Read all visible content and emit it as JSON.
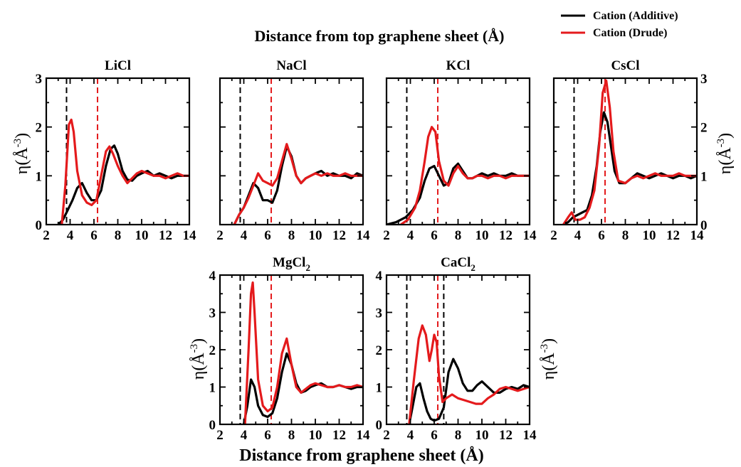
{
  "figure": {
    "top_xlabel": "Distance from top graphene sheet (Å)",
    "bottom_xlabel": "Distance from graphene sheet (Å)",
    "ylabel_main": "η(Å",
    "ylabel_sup": "-3",
    "ylabel_close": ")",
    "legend": [
      {
        "label": "Cation (Additive)",
        "color": "#000000"
      },
      {
        "label": "Cation (Drude)",
        "color": "#e41a1c"
      }
    ]
  },
  "chart_data": [
    {
      "type": "line",
      "title": "LiCl",
      "xlim": [
        2,
        14
      ],
      "ylim": [
        0,
        3
      ],
      "xticks": [
        2,
        4,
        6,
        8,
        10,
        12,
        14
      ],
      "yticks": [
        0,
        1,
        2,
        3
      ],
      "vlines": [
        {
          "x": 3.7,
          "color": "#000000"
        },
        {
          "x": 6.3,
          "color": "#e41a1c"
        }
      ],
      "series": [
        {
          "name": "Cation (Additive)",
          "color": "#000000",
          "x": [
            3.0,
            3.4,
            3.8,
            4.2,
            4.6,
            5.0,
            5.4,
            5.8,
            6.2,
            6.6,
            7.0,
            7.4,
            7.7,
            8.0,
            8.4,
            8.8,
            9.2,
            9.6,
            10.0,
            10.5,
            11.0,
            11.5,
            12.0,
            12.5,
            13.0,
            13.5,
            14.0
          ],
          "y": [
            0.0,
            0.1,
            0.3,
            0.5,
            0.75,
            0.85,
            0.65,
            0.5,
            0.5,
            0.7,
            1.2,
            1.55,
            1.62,
            1.45,
            1.1,
            0.92,
            0.9,
            1.0,
            1.05,
            1.1,
            1.0,
            1.05,
            1.0,
            0.95,
            1.0,
            1.0,
            1.0
          ]
        },
        {
          "name": "Cation (Drude)",
          "color": "#e41a1c",
          "x": [
            3.3,
            3.6,
            3.9,
            4.1,
            4.3,
            4.6,
            5.0,
            5.4,
            5.8,
            6.2,
            6.6,
            7.0,
            7.3,
            7.6,
            8.0,
            8.4,
            8.8,
            9.2,
            9.6,
            10.0,
            10.5,
            11.0,
            11.5,
            12.0,
            12.5,
            13.0,
            13.5,
            14.0
          ],
          "y": [
            0.0,
            0.8,
            2.05,
            2.15,
            1.9,
            1.1,
            0.6,
            0.45,
            0.4,
            0.5,
            1.0,
            1.5,
            1.6,
            1.45,
            1.2,
            1.0,
            0.85,
            0.95,
            1.05,
            1.1,
            1.05,
            1.0,
            1.0,
            0.95,
            1.0,
            1.05,
            1.0,
            1.0
          ]
        }
      ]
    },
    {
      "type": "line",
      "title": "NaCl",
      "xlim": [
        2,
        14
      ],
      "ylim": [
        0,
        3
      ],
      "xticks": [
        2,
        4,
        6,
        8,
        10,
        12,
        14
      ],
      "yticks": [
        0,
        1,
        2,
        3
      ],
      "vlines": [
        {
          "x": 3.7,
          "color": "#000000"
        },
        {
          "x": 6.3,
          "color": "#e41a1c"
        }
      ],
      "series": [
        {
          "name": "Cation (Additive)",
          "color": "#000000",
          "x": [
            3.2,
            3.6,
            4.0,
            4.4,
            4.8,
            5.2,
            5.6,
            6.0,
            6.4,
            6.8,
            7.2,
            7.6,
            8.0,
            8.4,
            8.8,
            9.2,
            9.6,
            10.0,
            10.5,
            11.0,
            11.5,
            12.0,
            12.5,
            13.0,
            13.5,
            14.0
          ],
          "y": [
            0.0,
            0.2,
            0.35,
            0.6,
            0.85,
            0.75,
            0.5,
            0.5,
            0.45,
            0.7,
            1.2,
            1.6,
            1.4,
            1.0,
            0.85,
            0.95,
            1.0,
            1.05,
            1.1,
            1.0,
            1.05,
            1.0,
            1.0,
            0.95,
            1.05,
            1.0
          ]
        },
        {
          "name": "Cation (Drude)",
          "color": "#e41a1c",
          "x": [
            3.2,
            3.6,
            4.0,
            4.4,
            4.8,
            5.2,
            5.6,
            6.0,
            6.4,
            6.8,
            7.2,
            7.6,
            8.0,
            8.4,
            8.8,
            9.2,
            9.6,
            10.0,
            10.5,
            11.0,
            11.5,
            12.0,
            12.5,
            13.0,
            13.5,
            14.0
          ],
          "y": [
            0.0,
            0.2,
            0.35,
            0.55,
            0.8,
            1.05,
            0.9,
            0.85,
            0.8,
            0.95,
            1.3,
            1.65,
            1.35,
            1.0,
            0.85,
            0.95,
            1.0,
            1.05,
            1.0,
            1.05,
            1.0,
            1.0,
            1.05,
            1.0,
            1.0,
            1.0
          ]
        }
      ]
    },
    {
      "type": "line",
      "title": "KCl",
      "xlim": [
        2,
        14
      ],
      "ylim": [
        0,
        3
      ],
      "xticks": [
        2,
        4,
        6,
        8,
        10,
        12,
        14
      ],
      "yticks": [
        0,
        1,
        2,
        3
      ],
      "vlines": [
        {
          "x": 3.7,
          "color": "#000000"
        },
        {
          "x": 6.3,
          "color": "#e41a1c"
        }
      ],
      "series": [
        {
          "name": "Cation (Additive)",
          "color": "#000000",
          "x": [
            2.0,
            2.8,
            3.6,
            4.2,
            4.8,
            5.2,
            5.6,
            6.0,
            6.4,
            6.8,
            7.2,
            7.6,
            8.0,
            8.4,
            8.8,
            9.2,
            9.6,
            10.0,
            10.5,
            11.0,
            11.5,
            12.0,
            12.5,
            13.0,
            13.5,
            14.0
          ],
          "y": [
            0.0,
            0.05,
            0.15,
            0.3,
            0.55,
            0.9,
            1.15,
            1.2,
            1.0,
            0.8,
            0.85,
            1.15,
            1.25,
            1.1,
            0.95,
            0.95,
            1.0,
            1.05,
            1.0,
            1.05,
            1.0,
            1.0,
            1.05,
            1.0,
            1.0,
            1.0
          ]
        },
        {
          "name": "Cation (Drude)",
          "color": "#e41a1c",
          "x": [
            3.2,
            3.8,
            4.4,
            4.8,
            5.2,
            5.5,
            5.8,
            6.1,
            6.4,
            6.8,
            7.2,
            7.6,
            8.0,
            8.4,
            8.8,
            9.2,
            9.6,
            10.0,
            10.5,
            11.0,
            11.5,
            12.0,
            12.5,
            13.0,
            13.5,
            14.0
          ],
          "y": [
            0.0,
            0.1,
            0.35,
            0.7,
            1.3,
            1.8,
            2.0,
            1.9,
            1.3,
            0.9,
            0.8,
            1.05,
            1.2,
            1.05,
            0.95,
            0.95,
            1.0,
            1.0,
            0.95,
            1.0,
            1.0,
            0.95,
            1.0,
            1.0,
            1.0,
            1.0
          ]
        }
      ]
    },
    {
      "type": "line",
      "title": "CsCl",
      "xlim": [
        2,
        14
      ],
      "ylim": [
        0,
        3
      ],
      "xticks": [
        2,
        4,
        6,
        8,
        10,
        12,
        14
      ],
      "yticks": [
        0,
        1,
        2,
        3
      ],
      "vlines": [
        {
          "x": 3.7,
          "color": "#000000"
        },
        {
          "x": 6.3,
          "color": "#e41a1c"
        }
      ],
      "series": [
        {
          "name": "Cation (Additive)",
          "color": "#000000",
          "x": [
            2.8,
            3.2,
            3.6,
            4.0,
            4.4,
            4.8,
            5.2,
            5.6,
            5.9,
            6.2,
            6.5,
            6.8,
            7.1,
            7.5,
            8.0,
            8.5,
            9.0,
            9.5,
            10.0,
            10.5,
            11.0,
            11.5,
            12.0,
            12.5,
            13.0,
            13.5,
            14.0
          ],
          "y": [
            0.0,
            0.05,
            0.15,
            0.2,
            0.25,
            0.3,
            0.6,
            1.2,
            1.9,
            2.3,
            2.1,
            1.6,
            1.1,
            0.85,
            0.85,
            0.95,
            1.05,
            1.0,
            0.95,
            1.0,
            1.05,
            1.0,
            0.95,
            1.0,
            1.0,
            0.95,
            1.0
          ]
        },
        {
          "name": "Cation (Drude)",
          "color": "#e41a1c",
          "x": [
            2.8,
            3.2,
            3.5,
            3.8,
            4.2,
            4.6,
            5.0,
            5.4,
            5.8,
            6.1,
            6.4,
            6.7,
            7.0,
            7.4,
            8.0,
            8.5,
            9.0,
            9.5,
            10.0,
            10.5,
            11.0,
            11.5,
            12.0,
            12.5,
            13.0,
            13.5,
            14.0
          ],
          "y": [
            0.0,
            0.15,
            0.25,
            0.1,
            0.1,
            0.15,
            0.35,
            0.7,
            1.6,
            2.7,
            2.95,
            2.4,
            1.5,
            0.9,
            0.85,
            0.95,
            1.0,
            0.95,
            1.0,
            1.05,
            1.0,
            1.0,
            1.0,
            1.05,
            1.0,
            1.0,
            1.0
          ]
        }
      ]
    },
    {
      "type": "line",
      "title": "MgCl",
      "title_sub": "2",
      "xlim": [
        2,
        14
      ],
      "ylim": [
        0,
        4
      ],
      "xticks": [
        2,
        4,
        6,
        8,
        10,
        12,
        14
      ],
      "yticks": [
        0,
        1,
        2,
        3,
        4
      ],
      "vlines": [
        {
          "x": 3.7,
          "color": "#000000"
        },
        {
          "x": 6.3,
          "color": "#e41a1c"
        }
      ],
      "series": [
        {
          "name": "Cation (Additive)",
          "color": "#000000",
          "x": [
            4.0,
            4.3,
            4.6,
            4.9,
            5.2,
            5.6,
            6.0,
            6.4,
            6.8,
            7.2,
            7.6,
            8.0,
            8.4,
            8.8,
            9.2,
            9.6,
            10.0,
            10.5,
            11.0,
            11.5,
            12.0,
            12.5,
            13.0,
            13.5,
            14.0
          ],
          "y": [
            0.0,
            0.5,
            1.2,
            1.0,
            0.5,
            0.25,
            0.2,
            0.3,
            0.7,
            1.4,
            1.9,
            1.6,
            1.1,
            0.85,
            0.9,
            1.0,
            1.05,
            1.1,
            1.0,
            1.0,
            1.05,
            1.0,
            0.95,
            1.0,
            1.0
          ]
        },
        {
          "name": "Cation (Drude)",
          "color": "#e41a1c",
          "x": [
            4.1,
            4.4,
            4.6,
            4.75,
            4.9,
            5.2,
            5.6,
            6.0,
            6.4,
            6.8,
            7.2,
            7.6,
            8.0,
            8.4,
            8.8,
            9.2,
            9.6,
            10.0,
            10.5,
            11.0,
            11.5,
            12.0,
            12.5,
            13.0,
            13.5,
            14.0
          ],
          "y": [
            0.0,
            2.0,
            3.5,
            3.8,
            3.0,
            1.2,
            0.5,
            0.35,
            0.45,
            1.0,
            1.9,
            2.3,
            1.6,
            1.0,
            0.85,
            0.95,
            1.05,
            1.1,
            1.05,
            1.0,
            1.0,
            1.05,
            1.0,
            1.0,
            1.05,
            1.0
          ]
        }
      ]
    },
    {
      "type": "line",
      "title": "CaCl",
      "title_sub": "2",
      "xlim": [
        2,
        14
      ],
      "ylim": [
        0,
        4
      ],
      "xticks": [
        2,
        4,
        6,
        8,
        10,
        12,
        14
      ],
      "yticks": [
        0,
        1,
        2,
        3,
        4
      ],
      "vlines": [
        {
          "x": 3.7,
          "color": "#000000"
        },
        {
          "x": 6.3,
          "color": "#e41a1c"
        },
        {
          "x": 6.8,
          "color": "#000000"
        }
      ],
      "series": [
        {
          "name": "Cation (Additive)",
          "color": "#000000",
          "x": [
            3.9,
            4.2,
            4.5,
            4.8,
            5.1,
            5.4,
            5.7,
            6.0,
            6.4,
            6.8,
            7.2,
            7.6,
            8.0,
            8.4,
            8.8,
            9.2,
            9.6,
            10.0,
            10.5,
            11.0,
            11.5,
            12.0,
            12.5,
            13.0,
            13.5,
            14.0
          ],
          "y": [
            0.0,
            0.5,
            1.0,
            1.1,
            0.7,
            0.35,
            0.15,
            0.1,
            0.15,
            0.45,
            1.4,
            1.75,
            1.5,
            1.1,
            0.9,
            0.9,
            1.05,
            1.15,
            1.0,
            0.85,
            0.85,
            0.95,
            1.0,
            0.95,
            1.05,
            1.0
          ]
        },
        {
          "name": "Cation (Drude)",
          "color": "#e41a1c",
          "x": [
            3.9,
            4.3,
            4.7,
            5.0,
            5.3,
            5.6,
            5.8,
            6.0,
            6.2,
            6.4,
            6.7,
            7.0,
            7.5,
            8.0,
            8.5,
            9.0,
            9.5,
            10.0,
            10.5,
            11.0,
            11.5,
            12.0,
            12.5,
            13.0,
            13.5,
            14.0
          ],
          "y": [
            0.0,
            1.2,
            2.3,
            2.65,
            2.4,
            1.7,
            2.0,
            2.4,
            2.2,
            1.3,
            0.6,
            0.7,
            0.8,
            0.7,
            0.65,
            0.6,
            0.55,
            0.55,
            0.7,
            0.8,
            0.95,
            1.0,
            0.95,
            0.9,
            0.95,
            1.0
          ]
        }
      ]
    }
  ]
}
